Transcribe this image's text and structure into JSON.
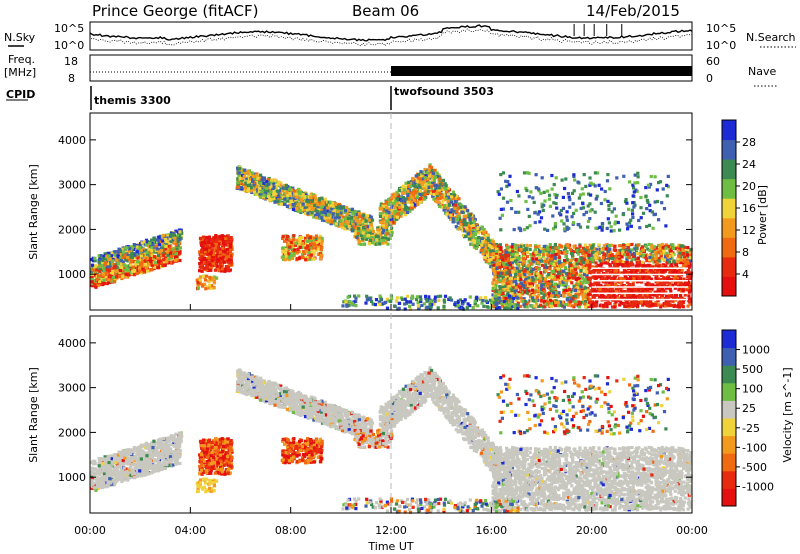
{
  "header": {
    "station": "Prince George (fitACF)",
    "beam": "Beam 06",
    "date": "14/Feb/2015"
  },
  "summary_panels": {
    "nsky_label": "N.Sky",
    "nsearch_label": "N.Search",
    "freq_label_top": "Freq.",
    "freq_label_bottom": "[MHz]",
    "nave_label": "Nave",
    "cpid_label": "CPID",
    "noise_ticks": [
      "10^5",
      "10^0"
    ],
    "freq_ticks": [
      "18",
      "8"
    ],
    "nave_ticks": [
      "60",
      "0"
    ],
    "cpid_segments": [
      {
        "name": "themis 3300",
        "start_hour": 0,
        "end_hour": 12
      },
      {
        "name": "twofsound 3503",
        "start_hour": 12,
        "end_hour": 24
      }
    ]
  },
  "colors": {
    "power": [
      "#1d2bd6",
      "#3f5fb0",
      "#3c8a52",
      "#6fbe44",
      "#f0d23a",
      "#f29a1e",
      "#f06a12",
      "#e82a10",
      "#e41010"
    ],
    "velocity": [
      "#1d2bd6",
      "#3f5fb0",
      "#3c8a52",
      "#6fbe44",
      "#c8c8c0",
      "#f0d23a",
      "#f29a1e",
      "#f06a12",
      "#e82a10",
      "#e41010"
    ],
    "ground_scatter": "#c8c8c0"
  },
  "chart_data": [
    {
      "type": "heatmap",
      "panel": "power",
      "ylabel": "Slant Range [km]",
      "xlabel": "",
      "xlim": [
        0,
        24
      ],
      "ylim": [
        200,
        4600
      ],
      "yticks": [
        "4000",
        "3000",
        "2000",
        "1000"
      ],
      "colorbar_label": "Power [dB]",
      "colorbar_ticks": [
        "28",
        "24",
        "20",
        "16",
        "12",
        "8",
        "4"
      ],
      "colorbar_range": [
        0,
        32
      ]
    },
    {
      "type": "heatmap",
      "panel": "velocity",
      "ylabel": "Slant Range [km]",
      "xlabel": "Time UT",
      "xlim": [
        0,
        24
      ],
      "ylim": [
        200,
        4600
      ],
      "yticks": [
        "4000",
        "3000",
        "2000",
        "1000"
      ],
      "xticks": [
        "00:00",
        "04:00",
        "08:00",
        "12:00",
        "16:00",
        "20:00",
        "00:00"
      ],
      "colorbar_label": "Velocity [m s^-1]",
      "colorbar_ticks": [
        "1000",
        "500",
        "100",
        "25",
        "-25",
        "-100",
        "-500",
        "-1000"
      ]
    }
  ]
}
